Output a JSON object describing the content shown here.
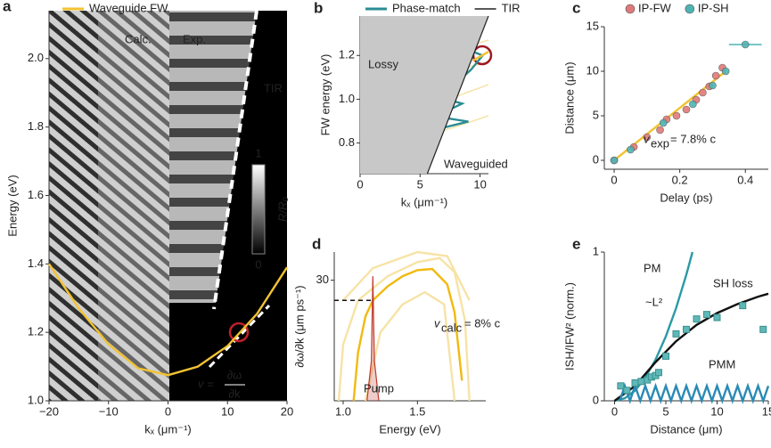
{
  "chart_data": [
    {
      "label": "a",
      "type": "line",
      "xlabel": "kₓ (μm⁻¹)",
      "ylabel": "Energy (eV)",
      "xlim": [
        -20,
        20
      ],
      "ylim": [
        1.0,
        2.14
      ],
      "xticks": [
        {
          "value": -20,
          "label": "−20"
        },
        {
          "value": -10,
          "label": "−10"
        },
        0,
        10,
        20
      ],
      "yticks": [
        {
          "value": 1,
          "label": "1.0"
        },
        1.2,
        1.4,
        1.6,
        1.8,
        {
          "value": 2,
          "label": "2.0"
        }
      ],
      "series": [
        {
          "name": "Waveguide FW",
          "color": "#f2c230",
          "x": [
            -20,
            -15,
            -10,
            -5,
            0,
            5,
            10,
            15,
            20
          ],
          "values": [
            1.4,
            1.27,
            1.165,
            1.095,
            1.075,
            1.1,
            1.16,
            1.255,
            1.39
          ]
        }
      ],
      "annotations": [
        "Calc.",
        "Exp.",
        "TIR",
        "1",
        "0",
        "R/R₀",
        "v =",
        "∂ω",
        "∂k"
      ]
    },
    {
      "label": "b",
      "type": "line",
      "xlabel": "kₓ (μm⁻¹)",
      "ylabel": "FW energy (eV)",
      "xlim": [
        0,
        10.7
      ],
      "ylim": [
        0.66,
        1.38
      ],
      "xticks": [
        0,
        5,
        10
      ],
      "yticks": [
        0.8,
        {
          "value": 1,
          "label": "1.0"
        },
        1.2
      ],
      "series": [
        {
          "name": "Phase-match",
          "color": "#2a8c95",
          "x": [
            1.04,
            4.93,
            8.66,
            10.22,
            9.25,
            7.76,
            6.94,
            8.51,
            7.54,
            5.52,
            7.16,
            9.03,
            7.16,
            5.3,
            4.78,
            4.33,
            3.96
          ],
          "values": [
            1.261,
            1.253,
            1.233,
            1.2,
            1.135,
            1.061,
            1.004,
            0.98,
            0.955,
            0.931,
            0.914,
            0.898,
            0.873,
            0.841,
            0.8,
            0.739,
            0.66
          ]
        },
        {
          "name": "TIR",
          "color": "#222222",
          "shade": "left",
          "x": [
            5.6,
            10.7
          ],
          "values": [
            0.66,
            1.38
          ]
        },
        {
          "color": "#f2c230",
          "x": [
            9.4,
            10.7
          ],
          "values": [
            1.176,
            1.217
          ]
        }
      ],
      "annotations": [
        "Lossy",
        "Waveguided"
      ]
    },
    {
      "label": "c",
      "type": "scatter",
      "xlabel": "Delay (ps)",
      "ylabel": "Distance (μm)",
      "xlim": [
        -0.03,
        0.47
      ],
      "ylim": [
        -1,
        15
      ],
      "xticks": [
        0,
        0.2,
        0.4
      ],
      "yticks": [
        0,
        5,
        10,
        15
      ],
      "series": [
        {
          "color": "#f2c230",
          "x": [
            0,
            0.34
          ],
          "values": [
            0,
            10
          ]
        },
        {
          "name": "IP-FW",
          "color": "#e07a7a",
          "marker": "circle",
          "x": [
            0,
            0.06,
            0.1,
            0.14,
            0.16,
            0.19,
            0.22,
            0.25,
            0.27,
            0.29,
            0.31,
            0.33
          ],
          "values": [
            0,
            1.5,
            2.6,
            3.4,
            4.6,
            5,
            5.7,
            6.8,
            7.6,
            8.3,
            9.5,
            10.4
          ]
        },
        {
          "name": "IP-SH",
          "color": "#4fb3b3",
          "marker": "circle",
          "x": [
            0,
            0.05,
            0.15,
            0.24,
            0.3,
            0.34,
            0.4
          ],
          "values": [
            0,
            1.2,
            4.2,
            6.3,
            8.4,
            10,
            13
          ],
          "xerr": [
            0,
            0,
            0,
            0,
            0,
            0,
            0.05
          ]
        }
      ],
      "annotations": [
        "v",
        "exp",
        "= 7.8% c"
      ]
    },
    {
      "label": "d",
      "type": "line",
      "xlabel": "Energy (eV)",
      "ylabel": "∂ω/∂k (μm ps⁻¹)",
      "xlim": [
        0.94,
        1.96
      ],
      "ylim": [
        0,
        37
      ],
      "xticks": [
        {
          "value": 1,
          "label": "1.0"
        },
        1.5
      ],
      "yticks": [
        30
      ],
      "series": [
        {
          "color": "#f7e3a6",
          "x": [
            0.97,
            1.0,
            1.1,
            1.3,
            1.5,
            1.65,
            1.75,
            1.82,
            1.85
          ],
          "values": [
            0,
            14,
            25,
            31,
            34.5,
            35.5,
            32,
            20,
            0
          ]
        },
        {
          "color": "#f7e3a6",
          "x": [
            1.0,
            1.2,
            1.5,
            1.7,
            1.85
          ],
          "values": [
            25,
            33,
            37,
            36,
            25
          ]
        },
        {
          "color": "#f7e3a6",
          "x": [
            1.15,
            1.25,
            1.4,
            1.55,
            1.68,
            1.75
          ],
          "values": [
            0,
            17,
            24,
            27,
            24,
            0
          ]
        },
        {
          "color": "#f2b90f",
          "x": [
            1.07,
            1.1,
            1.15,
            1.2,
            1.3,
            1.4,
            1.5,
            1.6,
            1.7,
            1.75,
            1.8
          ],
          "values": [
            0,
            12,
            21,
            25,
            28.5,
            31,
            32.5,
            32.8,
            29,
            22,
            5
          ]
        },
        {
          "color": "#c0392b",
          "area": true,
          "x": [
            1.16,
            1.19,
            1.2,
            1.21,
            1.24
          ],
          "values": [
            0,
            10,
            31,
            10,
            0
          ]
        },
        {
          "color": "#111111",
          "dash": true,
          "x": [
            0.94,
            1.2
          ],
          "values": [
            25,
            25
          ]
        }
      ],
      "annotations": [
        "v",
        "calc",
        "= 8% c",
        "Pump"
      ]
    },
    {
      "label": "e",
      "type": "line",
      "xlabel": "Distance (μm)",
      "ylabel": "ISH/IFW² (norm.)",
      "xlim": [
        -1,
        15
      ],
      "ylim": [
        0,
        1
      ],
      "xticks": [
        0,
        5,
        10,
        15
      ],
      "yticks": [
        0,
        1
      ],
      "series": [
        {
          "color": "#2a9aa5",
          "x": [
            0,
            1,
            2,
            3,
            4,
            5,
            6,
            7,
            7.6
          ],
          "values": [
            0,
            0.017,
            0.069,
            0.156,
            0.277,
            0.433,
            0.623,
            0.848,
            1
          ]
        },
        {
          "color": "#111111",
          "x": [
            0,
            2,
            4,
            6,
            8,
            10,
            12,
            14,
            15
          ],
          "values": [
            0,
            0.1,
            0.26,
            0.4,
            0.51,
            0.59,
            0.65,
            0.7,
            0.72
          ]
        },
        {
          "color": "#2a8ab5",
          "x": [
            0.5,
            0.75,
            1,
            1.25,
            1.5,
            1.75,
            2,
            2.25,
            2.5,
            2.75,
            3,
            3.25,
            3.5,
            3.75,
            4,
            4.25,
            4.5,
            4.75,
            5,
            5.25,
            5.5,
            5.75,
            6,
            6.25,
            6.5,
            6.75,
            7,
            7.25,
            7.5,
            7.75,
            8,
            8.25,
            8.5,
            8.75,
            9,
            9.25,
            9.5,
            9.75,
            10,
            10.25,
            10.5,
            10.75,
            11,
            11.25,
            11.5,
            11.75,
            12,
            12.25,
            12.5,
            12.75,
            13,
            13.25,
            13.5,
            13.75,
            14,
            14.25,
            14.5,
            14.75,
            15
          ],
          "values": [
            0,
            0.05,
            0.1,
            0.05,
            0,
            0.05,
            0.1,
            0.05,
            0,
            0.05,
            0.1,
            0.05,
            0,
            0.05,
            0.1,
            0.05,
            0,
            0.05,
            0.1,
            0.05,
            0,
            0.05,
            0.1,
            0.05,
            0,
            0.05,
            0.1,
            0.05,
            0,
            0.05,
            0.1,
            0.05,
            0,
            0.05,
            0.1,
            0.05,
            0,
            0.05,
            0.1,
            0.05,
            0,
            0.05,
            0.1,
            0.05,
            0,
            0.05,
            0.1,
            0.05,
            0,
            0.05,
            0.1,
            0.05,
            0,
            0.05,
            0.1,
            0.05,
            0,
            0.05,
            0.1
          ]
        },
        {
          "color": "#5fb8b8",
          "marker": "square",
          "x": [
            0.6,
            1.2,
            2,
            2.6,
            3.2,
            3.6,
            4,
            4.3,
            5,
            6,
            7,
            8,
            9,
            10,
            12.5,
            14.5
          ],
          "values": [
            0.1,
            0.07,
            0.12,
            0.13,
            0.14,
            0.16,
            0.17,
            0.19,
            0.3,
            0.45,
            0.48,
            0.55,
            0.58,
            0.56,
            0.64,
            0.48
          ]
        }
      ],
      "annotations": [
        "PM",
        "~L²",
        "SH loss",
        "PMM"
      ]
    }
  ]
}
